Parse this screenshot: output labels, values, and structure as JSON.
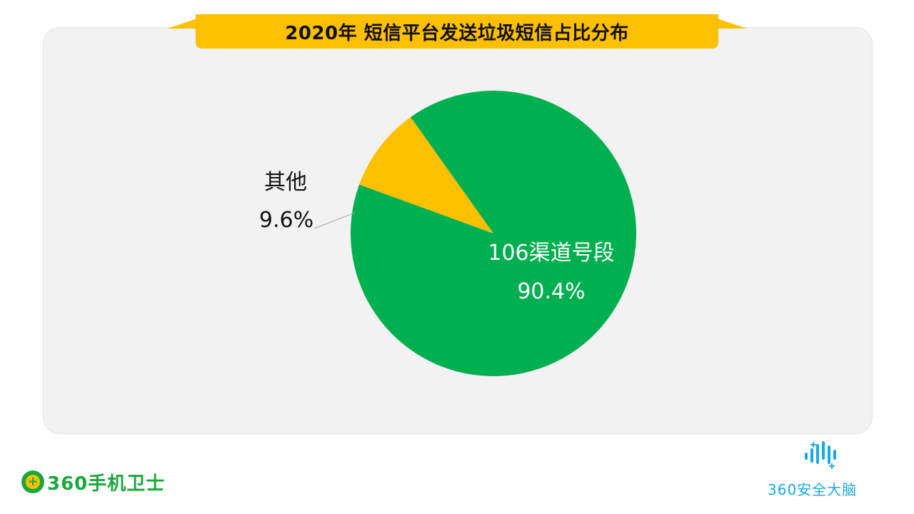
{
  "title": "2020年 短信平台发送垃圾短信占比分布",
  "chart_data": {
    "type": "pie",
    "title": "2020年 短信平台发送垃圾短信占比分布",
    "slices": [
      {
        "name": "106渠道号段",
        "value": 90.4,
        "label": "90.4%",
        "color": "#00b050"
      },
      {
        "name": "其他",
        "value": 9.6,
        "label": "9.6%",
        "color": "#fdc000"
      }
    ]
  },
  "logos": {
    "left": {
      "mark": "+",
      "text": "360手机卫士",
      "icon": "360-shield-icon",
      "color": "#1ba73c"
    },
    "right": {
      "text": "360安全大脑",
      "icon": "sound-wave-icon",
      "color": "#19a9e6"
    }
  }
}
